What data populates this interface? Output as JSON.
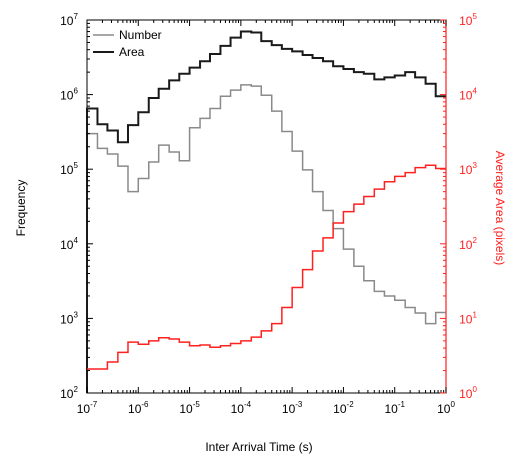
{
  "chart_data": {
    "type": "line",
    "style": "step",
    "title": "",
    "xlabel": "Inter Arrival Time (s)",
    "ylabel": "Frequency",
    "y2label": "Average Area (pixels)",
    "xscale": "log",
    "yscale": "log",
    "y2scale": "log",
    "xlim": [
      1e-07,
      1
    ],
    "ylim": [
      100,
      10000000
    ],
    "y2lim": [
      1,
      100000
    ],
    "grid": false,
    "legend": {
      "position": "top-left",
      "entries": [
        "Number",
        "Area"
      ]
    },
    "colors": {
      "number": "#8a8a8a",
      "area": "#1a1a1a",
      "avg_area": "#ff2020",
      "axis_right": "#ff2020",
      "axis_left": "#000000"
    },
    "x_ticks": [
      {
        "mantissa": "10",
        "exp": "-7",
        "value": 1e-07
      },
      {
        "mantissa": "10",
        "exp": "-6",
        "value": 1e-06
      },
      {
        "mantissa": "10",
        "exp": "-5",
        "value": 1e-05
      },
      {
        "mantissa": "10",
        "exp": "-4",
        "value": 0.0001
      },
      {
        "mantissa": "10",
        "exp": "-3",
        "value": 0.001
      },
      {
        "mantissa": "10",
        "exp": "-2",
        "value": 0.01
      },
      {
        "mantissa": "10",
        "exp": "-1",
        "value": 0.1
      },
      {
        "mantissa": "10",
        "exp": "0",
        "value": 1
      }
    ],
    "y_ticks": [
      {
        "mantissa": "10",
        "exp": "2",
        "value": 100
      },
      {
        "mantissa": "10",
        "exp": "3",
        "value": 1000
      },
      {
        "mantissa": "10",
        "exp": "4",
        "value": 10000
      },
      {
        "mantissa": "10",
        "exp": "5",
        "value": 100000
      },
      {
        "mantissa": "10",
        "exp": "6",
        "value": 1000000
      },
      {
        "mantissa": "10",
        "exp": "7",
        "value": 10000000
      }
    ],
    "y2_ticks": [
      {
        "mantissa": "10",
        "exp": "0",
        "value": 1
      },
      {
        "mantissa": "10",
        "exp": "1",
        "value": 10
      },
      {
        "mantissa": "10",
        "exp": "2",
        "value": 100
      },
      {
        "mantissa": "10",
        "exp": "3",
        "value": 1000
      },
      {
        "mantissa": "10",
        "exp": "4",
        "value": 10000
      },
      {
        "mantissa": "10",
        "exp": "5",
        "value": 100000
      }
    ],
    "series": [
      {
        "name": "Number",
        "axis": "left",
        "x_edges": [
          1e-07,
          1.6e-07,
          2.5e-07,
          4e-07,
          6.3e-07,
          1e-06,
          1.6e-06,
          2.5e-06,
          4e-06,
          6.3e-06,
          1e-05,
          1.6e-05,
          2.5e-05,
          4e-05,
          6.3e-05,
          0.0001,
          0.00016,
          0.00025,
          0.0004,
          0.00063,
          0.001,
          0.0016,
          0.0025,
          0.004,
          0.0063,
          0.01,
          0.016,
          0.025,
          0.04,
          0.063,
          0.1,
          0.16,
          0.25,
          0.4,
          0.63
        ],
        "values": [
          300000,
          190000,
          160000,
          110000,
          50000,
          75000,
          125000,
          210000,
          170000,
          130000,
          360000,
          480000,
          650000,
          950000,
          1150000,
          1350000,
          1300000,
          980000,
          600000,
          320000,
          175000,
          98000,
          50000,
          28000,
          16000,
          8500,
          5000,
          3200,
          2300,
          2000,
          1750,
          1400,
          1180,
          850,
          1200
        ],
        "start_level": 100
      },
      {
        "name": "Area",
        "axis": "left",
        "x_edges": [
          1e-07,
          1.6e-07,
          2.5e-07,
          4e-07,
          6.3e-07,
          1e-06,
          1.6e-06,
          2.5e-06,
          4e-06,
          6.3e-06,
          1e-05,
          1.6e-05,
          2.5e-05,
          4e-05,
          6.3e-05,
          0.0001,
          0.00016,
          0.00025,
          0.0004,
          0.00063,
          0.001,
          0.0016,
          0.0025,
          0.004,
          0.0063,
          0.01,
          0.016,
          0.025,
          0.04,
          0.063,
          0.1,
          0.16,
          0.25,
          0.4,
          0.63
        ],
        "values": [
          650000,
          400000,
          330000,
          230000,
          390000,
          580000,
          900000,
          1200000,
          1550000,
          1900000,
          2300000,
          2800000,
          3500000,
          4500000,
          5800000,
          7000000,
          6800000,
          5200000,
          4600000,
          4100000,
          3800000,
          3400000,
          3100000,
          2800000,
          2400000,
          2200000,
          2000000,
          1900000,
          1600000,
          1700000,
          1800000,
          2000000,
          1700000,
          1400000,
          950000
        ],
        "start_level": 100
      },
      {
        "name": "Average Area",
        "axis": "right",
        "x_edges": [
          1e-07,
          1.6e-07,
          2.5e-07,
          4e-07,
          6.3e-07,
          1e-06,
          1.6e-06,
          2.5e-06,
          4e-06,
          6.3e-06,
          1e-05,
          1.6e-05,
          2.5e-05,
          4e-05,
          6.3e-05,
          0.0001,
          0.00016,
          0.00025,
          0.0004,
          0.00063,
          0.001,
          0.0016,
          0.0025,
          0.004,
          0.0063,
          0.01,
          0.016,
          0.025,
          0.04,
          0.063,
          0.1,
          0.16,
          0.25,
          0.4,
          0.63
        ],
        "values": [
          2.1,
          2.1,
          2.6,
          3.5,
          4.8,
          4.5,
          5.0,
          5.5,
          5.3,
          4.8,
          4.3,
          4.4,
          4.1,
          4.3,
          4.6,
          5.0,
          5.6,
          6.8,
          8.5,
          14,
          26,
          45,
          80,
          120,
          190,
          270,
          340,
          430,
          540,
          680,
          800,
          900,
          1050,
          1130,
          1020
        ]
      }
    ]
  }
}
